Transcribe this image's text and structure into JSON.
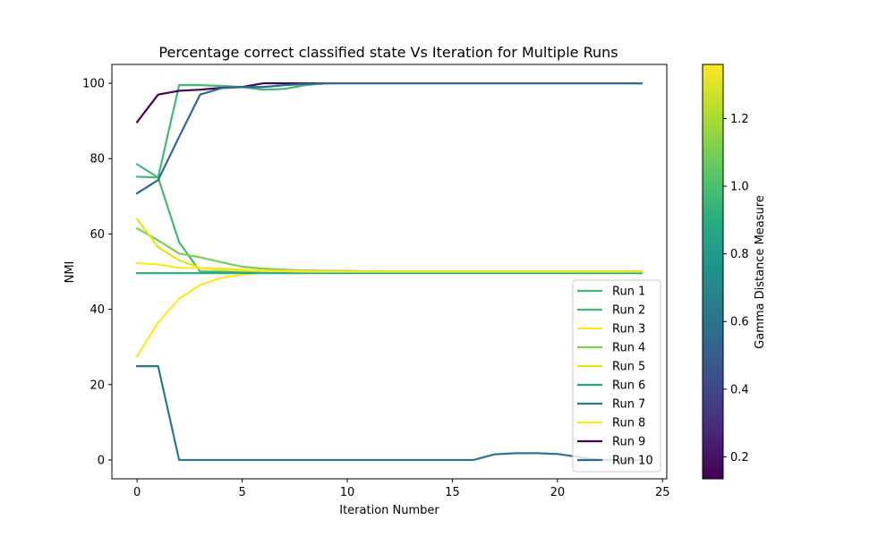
{
  "chart_data": {
    "type": "line",
    "title": "Percentage correct classified state Vs Iteration for Multiple Runs",
    "xlabel": "Iteration Number",
    "ylabel": "NMI",
    "xlim": [
      -1.2,
      25.2
    ],
    "ylim": [
      -5,
      105
    ],
    "xticks": [
      0,
      5,
      10,
      15,
      20,
      25
    ],
    "yticks": [
      0,
      20,
      40,
      60,
      80,
      100
    ],
    "legend_position": "bottom-right",
    "colorbar": {
      "label": "Gamma Distance Measure",
      "range": [
        0.135,
        1.36
      ],
      "ticks": [
        0.2,
        0.4,
        0.6,
        0.8,
        1.0,
        1.2
      ],
      "colormap": "viridis"
    },
    "x": [
      0,
      1,
      2,
      3,
      4,
      5,
      6,
      7,
      8,
      9,
      10,
      11,
      12,
      13,
      14,
      15,
      16,
      17,
      18,
      19,
      20,
      21,
      22,
      23,
      24
    ],
    "series": [
      {
        "name": "Run 1",
        "color": "#3fbc73",
        "values": [
          78.5,
          75,
          99.5,
          99.5,
          99.3,
          99,
          98.3,
          98.5,
          99.5,
          100,
          100,
          100,
          100,
          100,
          100,
          100,
          100,
          100,
          100,
          100,
          100,
          100,
          100,
          100,
          100
        ]
      },
      {
        "name": "Run 2",
        "color": "#3fbc73",
        "values": [
          75.2,
          75,
          57.8,
          50,
          50,
          50,
          50,
          50,
          50,
          50,
          50,
          50,
          50,
          50,
          50,
          50,
          50,
          50,
          50,
          50,
          50,
          50,
          50,
          50,
          50
        ]
      },
      {
        "name": "Run 3",
        "color": "#fde725",
        "values": [
          27.5,
          36.5,
          42.8,
          46.5,
          48.3,
          49.2,
          49.7,
          49.9,
          50,
          50,
          50,
          50,
          50,
          50,
          50,
          50,
          50,
          50,
          50,
          50,
          50,
          50,
          50,
          50,
          50
        ]
      },
      {
        "name": "Run 4",
        "color": "#7ad151",
        "values": [
          61.5,
          58.3,
          54.8,
          53.8,
          52.5,
          51.3,
          50.8,
          50.5,
          50.3,
          50.2,
          50.2,
          50.1,
          50.1,
          50.1,
          50.1,
          50.1,
          50.1,
          50.1,
          50.1,
          50.1,
          50.1,
          50.1,
          50.1,
          50.1,
          50.1
        ]
      },
      {
        "name": "Run 5",
        "color": "#e5e419",
        "values": [
          64,
          56.5,
          53,
          51,
          50.8,
          50.5,
          50.3,
          50.2,
          50.1,
          50,
          50,
          50,
          50,
          50,
          50,
          50,
          50,
          50,
          50,
          50,
          50,
          50,
          50,
          50,
          50
        ]
      },
      {
        "name": "Run 6",
        "color": "#22a884",
        "values": [
          49.6,
          49.6,
          49.6,
          49.6,
          49.6,
          49.6,
          49.6,
          49.6,
          49.6,
          49.6,
          49.6,
          49.6,
          49.6,
          49.6,
          49.6,
          49.6,
          49.6,
          49.6,
          49.6,
          49.6,
          49.6,
          49.6,
          49.6,
          49.6,
          49.6
        ]
      },
      {
        "name": "Run 7",
        "color": "#2a788e",
        "values": [
          24.9,
          24.9,
          0,
          0,
          0,
          0,
          0,
          0,
          0,
          0,
          0,
          0,
          0,
          0,
          0,
          0,
          0,
          1.5,
          1.8,
          1.8,
          1.6,
          0.8,
          0,
          0,
          0
        ]
      },
      {
        "name": "Run 8",
        "color": "#fde725",
        "values": [
          52.3,
          51.9,
          51,
          50.9,
          50.5,
          50.3,
          50.2,
          50.1,
          50,
          50,
          50,
          50,
          50,
          50,
          50,
          50,
          50,
          50,
          50,
          50,
          50,
          50,
          50,
          50,
          50
        ]
      },
      {
        "name": "Run 9",
        "color": "#440154",
        "values": [
          89.7,
          97,
          98,
          98.3,
          98.8,
          99,
          100,
          100,
          100,
          100,
          100,
          100,
          100,
          100,
          100,
          100,
          100,
          100,
          100,
          100,
          100,
          100,
          100,
          100,
          100
        ]
      },
      {
        "name": "Run 10",
        "color": "#30688e",
        "values": [
          70.8,
          74.3,
          85.8,
          97,
          98.7,
          99,
          99,
          99.5,
          99.8,
          100,
          100,
          100,
          100,
          100,
          100,
          100,
          100,
          100,
          100,
          100,
          100,
          100,
          100,
          100,
          100
        ]
      }
    ]
  }
}
